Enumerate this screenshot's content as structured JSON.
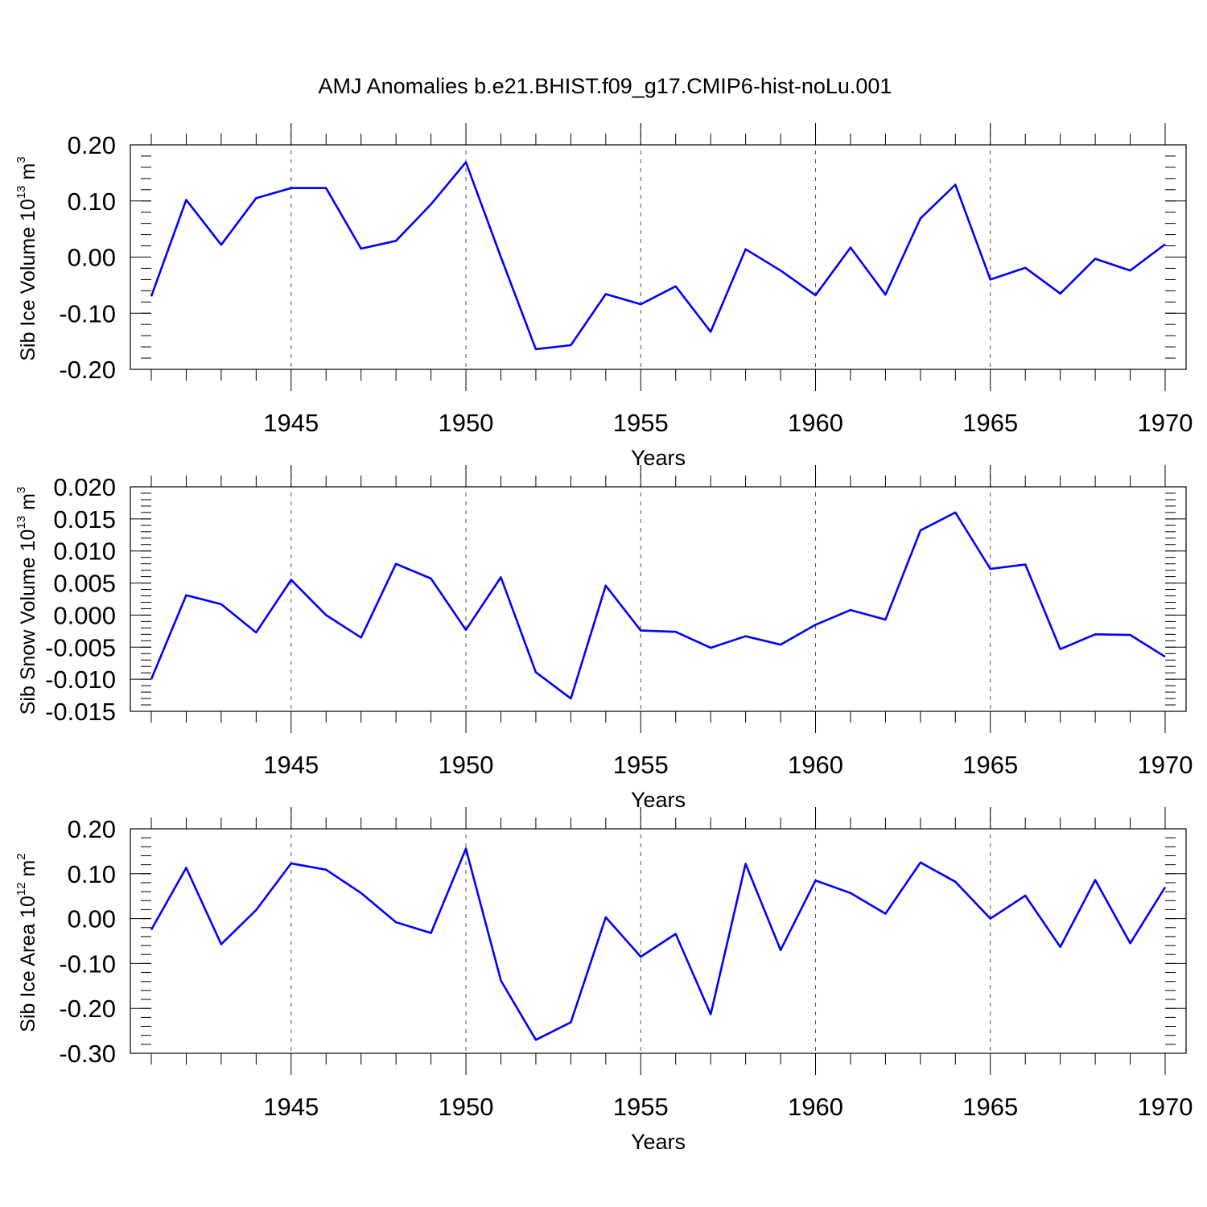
{
  "title": "AMJ Anomalies b.e21.BHIST.f09_g17.CMIP6-hist-noLu.001",
  "chart_data": [
    {
      "type": "line",
      "ylabel_text": "Sib Ice Volume 10",
      "ylabel_exp": "13",
      "ylabel_unit": " m",
      "ylabel_unit_exp": "3",
      "xlabel": "Years",
      "xlim": [
        1941,
        1970
      ],
      "ylim": [
        -0.2,
        0.2
      ],
      "yticks": [
        -0.2,
        -0.1,
        0.0,
        0.1,
        0.2
      ],
      "yticklabels": [
        "-0.20",
        "-0.10",
        "0.00",
        "0.10",
        "0.20"
      ],
      "xticks": [
        1945,
        1950,
        1955,
        1960,
        1965,
        1970
      ],
      "xticklabels": [
        "1945",
        "1950",
        "1955",
        "1960",
        "1965",
        "1970"
      ],
      "grid_x": [
        1945,
        1950,
        1955,
        1960,
        1965
      ],
      "line_color": "#0000ff",
      "x": [
        1941,
        1942,
        1943,
        1944,
        1945,
        1946,
        1947,
        1948,
        1949,
        1950,
        1951,
        1952,
        1953,
        1954,
        1955,
        1956,
        1957,
        1958,
        1959,
        1960,
        1961,
        1962,
        1963,
        1964,
        1965,
        1966,
        1967,
        1968,
        1969,
        1970
      ],
      "y": [
        -0.07,
        0.102,
        0.022,
        0.105,
        0.123,
        0.123,
        0.015,
        0.029,
        0.094,
        0.169,
        0.0,
        -0.164,
        -0.157,
        -0.066,
        -0.084,
        -0.052,
        -0.133,
        0.014,
        -0.024,
        -0.068,
        0.017,
        -0.067,
        0.069,
        0.129,
        -0.04,
        -0.019,
        -0.065,
        -0.003,
        -0.024,
        0.023
      ]
    },
    {
      "type": "line",
      "ylabel_text": "Sib Snow Volume 10",
      "ylabel_exp": "13",
      "ylabel_unit": " m",
      "ylabel_unit_exp": "3",
      "xlabel": "Years",
      "xlim": [
        1941,
        1970
      ],
      "ylim": [
        -0.015,
        0.02
      ],
      "yticks": [
        -0.015,
        -0.01,
        -0.005,
        0.0,
        0.005,
        0.01,
        0.015,
        0.02
      ],
      "yticklabels": [
        "-0.015",
        "-0.010",
        "-0.005",
        "0.000",
        "0.005",
        "0.010",
        "0.015",
        "0.020"
      ],
      "xticks": [
        1945,
        1950,
        1955,
        1960,
        1965,
        1970
      ],
      "xticklabels": [
        "1945",
        "1950",
        "1955",
        "1960",
        "1965",
        "1970"
      ],
      "grid_x": [
        1945,
        1950,
        1955,
        1960,
        1965
      ],
      "line_color": "#0000ff",
      "x": [
        1941,
        1942,
        1943,
        1944,
        1945,
        1946,
        1947,
        1948,
        1949,
        1950,
        1951,
        1952,
        1953,
        1954,
        1955,
        1956,
        1957,
        1958,
        1959,
        1960,
        1961,
        1962,
        1963,
        1964,
        1965,
        1966,
        1967,
        1968,
        1969,
        1970
      ],
      "y": [
        -0.01,
        0.0031,
        0.0017,
        -0.0027,
        0.0055,
        0.0,
        -0.0035,
        0.008,
        0.0057,
        -0.0023,
        0.0059,
        -0.0089,
        -0.013,
        0.0046,
        -0.0024,
        -0.0026,
        -0.0051,
        -0.0033,
        -0.0046,
        -0.0015,
        0.0008,
        -0.0007,
        0.0132,
        0.016,
        0.0072,
        0.0079,
        -0.0053,
        -0.003,
        -0.0031,
        -0.0065
      ]
    },
    {
      "type": "line",
      "ylabel_text": "Sib Ice Area 10",
      "ylabel_exp": "12",
      "ylabel_unit": " m",
      "ylabel_unit_exp": "2",
      "xlabel": "Years",
      "xlim": [
        1941,
        1970
      ],
      "ylim": [
        -0.3,
        0.2
      ],
      "yticks": [
        -0.3,
        -0.2,
        -0.1,
        0.0,
        0.1,
        0.2
      ],
      "yticklabels": [
        "-0.30",
        "-0.20",
        "-0.10",
        "0.00",
        "0.10",
        "0.20"
      ],
      "xticks": [
        1945,
        1950,
        1955,
        1960,
        1965,
        1970
      ],
      "xticklabels": [
        "1945",
        "1950",
        "1955",
        "1960",
        "1965",
        "1970"
      ],
      "grid_x": [
        1945,
        1950,
        1955,
        1960,
        1965
      ],
      "line_color": "#0000ff",
      "x": [
        1941,
        1942,
        1943,
        1944,
        1945,
        1946,
        1947,
        1948,
        1949,
        1950,
        1951,
        1952,
        1953,
        1954,
        1955,
        1956,
        1957,
        1958,
        1959,
        1960,
        1961,
        1962,
        1963,
        1964,
        1965,
        1966,
        1967,
        1968,
        1969,
        1970
      ],
      "y": [
        -0.025,
        0.113,
        -0.057,
        0.019,
        0.123,
        0.109,
        0.057,
        -0.008,
        -0.032,
        0.156,
        -0.138,
        -0.27,
        -0.231,
        0.003,
        -0.085,
        -0.034,
        -0.213,
        0.122,
        -0.07,
        0.085,
        0.057,
        0.011,
        0.125,
        0.082,
        0.0,
        0.051,
        -0.063,
        0.086,
        -0.055,
        0.07
      ]
    }
  ]
}
